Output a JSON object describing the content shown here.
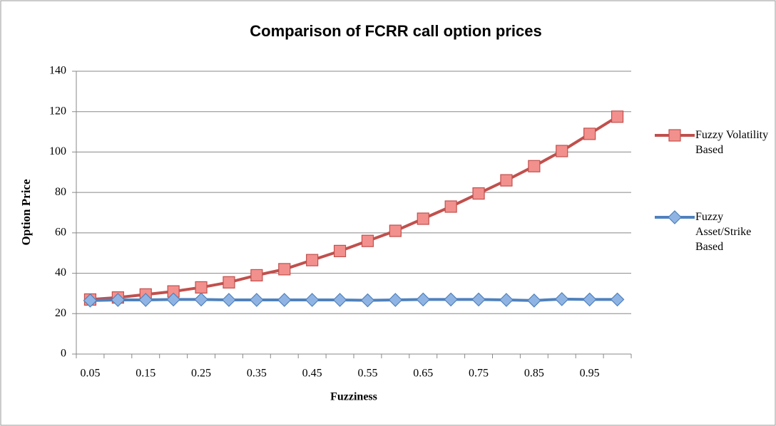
{
  "chart_data": {
    "type": "line",
    "title": "Comparison of FCRR call option prices",
    "x_label": "Fuzziness",
    "y_label": "Option Price",
    "categories": [
      "0.05",
      null,
      "0.15",
      null,
      "0.25",
      null,
      "0.35",
      null,
      "0.45",
      null,
      "0.55",
      null,
      "0.65",
      null,
      "0.75",
      null,
      "0.85",
      null,
      "0.95",
      null
    ],
    "series": [
      {
        "name": "Fuzzy Volatility Based",
        "color": "#c0504d",
        "marker": "square",
        "values": [
          27,
          28,
          29.5,
          31,
          33,
          35.5,
          39,
          42,
          46.5,
          51,
          56,
          61,
          67,
          73,
          79.5,
          86,
          93,
          100.5,
          109,
          117.5
        ]
      },
      {
        "name": "Fuzzy Asset/Strike Based",
        "color": "#4f81bd",
        "marker": "diamond",
        "values": [
          26.5,
          26.8,
          26.8,
          27,
          27,
          26.8,
          26.8,
          26.8,
          26.8,
          26.8,
          26.6,
          26.8,
          27,
          27,
          27,
          26.8,
          26.5,
          27.2,
          27,
          27
        ]
      }
    ],
    "ylim": [
      0,
      140
    ],
    "yticks": [
      0,
      20,
      40,
      60,
      80,
      100,
      120,
      140
    ],
    "grid": true,
    "legend": "right"
  }
}
